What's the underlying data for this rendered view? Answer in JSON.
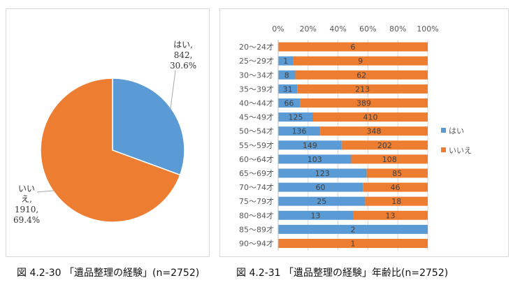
{
  "colors": {
    "hai": "#5b9bd5",
    "iie": "#ed7d31",
    "axis": "#595959",
    "grid": "#d9d9d9",
    "bar_label": "#404040"
  },
  "captions": {
    "left": "図 4.2-30 「遺品整理の経験」(n=2752)",
    "right": "図 4.2-31 「遺品整理の経験」年齢比(n=2752)"
  },
  "chart_data": [
    {
      "type": "pie",
      "slices": [
        {
          "name": "はい",
          "value": 842,
          "percent": 30.6,
          "label_lines": [
            "はい,",
            "842,",
            "30.6%"
          ]
        },
        {
          "name": "いいえ",
          "value": 1910,
          "percent": 69.4,
          "label_lines": [
            "いい",
            "え,",
            "1910,",
            "69.4%"
          ]
        }
      ]
    },
    {
      "type": "bar",
      "orientation": "horizontal",
      "stacked": "percent",
      "categories": [
        "20～24才",
        "25～29才",
        "30～34才",
        "35～39才",
        "40～44才",
        "45～49才",
        "50～54才",
        "55～59才",
        "60～64才",
        "65～69才",
        "70～74才",
        "75～79才",
        "80～84才",
        "85～89才",
        "90～94才"
      ],
      "series": [
        {
          "name": "はい",
          "values": [
            0,
            1,
            8,
            31,
            66,
            125,
            136,
            149,
            103,
            123,
            60,
            25,
            13,
            2,
            0
          ]
        },
        {
          "name": "いいえ",
          "values": [
            6,
            9,
            62,
            213,
            389,
            410,
            348,
            202,
            108,
            85,
            46,
            18,
            13,
            0,
            1
          ]
        }
      ],
      "x_ticks": [
        "0%",
        "20%",
        "40%",
        "60%",
        "80%",
        "100%"
      ],
      "xlim": [
        0,
        100
      ],
      "legend_position": "right",
      "grid": true
    }
  ]
}
